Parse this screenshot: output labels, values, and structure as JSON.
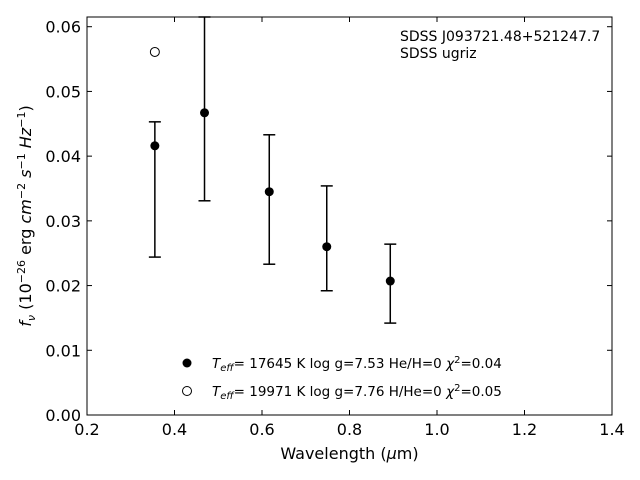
{
  "chart_data": {
    "type": "scatter",
    "annotations": [
      "SDSS J093721.48+521247.7",
      "SDSS ugriz"
    ],
    "xlabel": "Wavelength (μm)",
    "ylabel": "fν (10⁻²⁶ erg cm⁻² s⁻¹ Hz⁻¹)",
    "xlim": [
      0.2,
      1.4
    ],
    "ylim": [
      0.0,
      0.0615
    ],
    "xticks": [
      "0.2",
      "0.4",
      "0.6",
      "0.8",
      "1.0",
      "1.2",
      "1.4"
    ],
    "yticks": [
      "0.00",
      "0.01",
      "0.02",
      "0.03",
      "0.04",
      "0.05",
      "0.06"
    ],
    "grid": false,
    "legend_position": "bottom-center",
    "series": [
      {
        "name": "Teff= 17645 K  log g=7.53  He/H=0  χ²=0.04",
        "marker": "filled-circle",
        "color": "#000000",
        "x": [
          0.3551,
          0.4686,
          0.6166,
          0.748,
          0.8932
        ],
        "y": [
          0.0416,
          0.0467,
          0.0345,
          0.026,
          0.0207
        ],
        "yerr_low": [
          0.0244,
          0.0331,
          0.0233,
          0.0192,
          0.0142
        ],
        "yerr_high": [
          0.0453,
          0.0615,
          0.0433,
          0.0354,
          0.0264
        ]
      },
      {
        "name": "Teff= 19971 K  log g=7.76  H/He=0  χ²=0.05",
        "marker": "open-circle",
        "color": "#000000",
        "x": [
          0.3551
        ],
        "y": [
          0.0561
        ]
      }
    ]
  }
}
